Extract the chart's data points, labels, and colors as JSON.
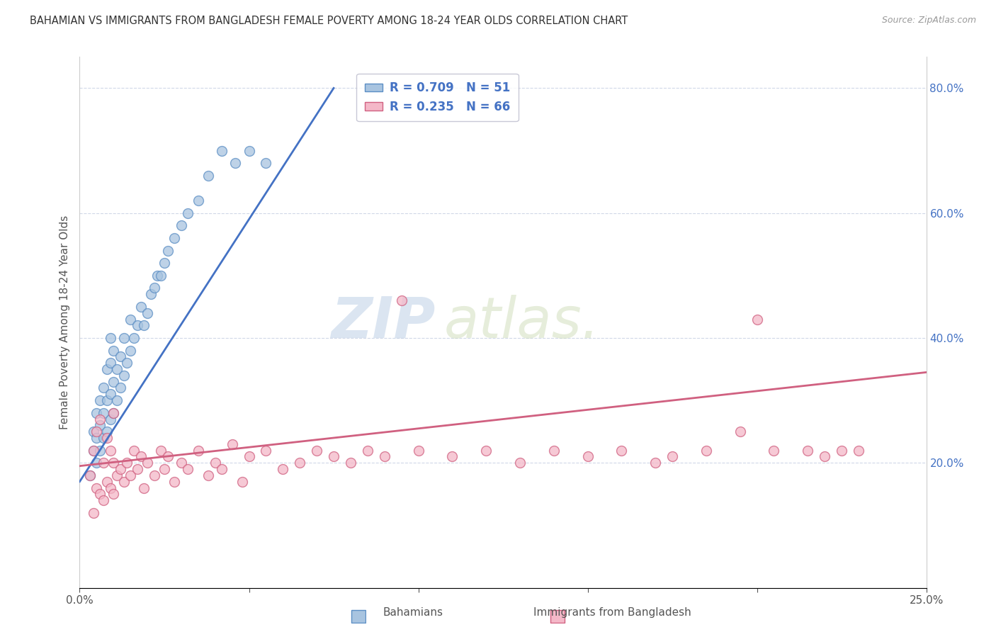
{
  "title": "BAHAMIAN VS IMMIGRANTS FROM BANGLADESH FEMALE POVERTY AMONG 18-24 YEAR OLDS CORRELATION CHART",
  "source": "Source: ZipAtlas.com",
  "ylabel": "Female Poverty Among 18-24 Year Olds",
  "xlim": [
    0.0,
    0.25
  ],
  "ylim": [
    0.0,
    0.85
  ],
  "xticks": [
    0.0,
    0.05,
    0.1,
    0.15,
    0.2,
    0.25
  ],
  "xticklabels": [
    "0.0%",
    "",
    "",
    "",
    "",
    "25.0%"
  ],
  "yticks_right": [
    0.2,
    0.4,
    0.6,
    0.8
  ],
  "yticklabels_right": [
    "20.0%",
    "40.0%",
    "60.0%",
    "80.0%"
  ],
  "series1_label": "Bahamians",
  "series1_R": "0.709",
  "series1_N": "51",
  "series1_color": "#a8c4e0",
  "series1_edge_color": "#5b8ec4",
  "series1_line_color": "#4472c4",
  "series2_label": "Immigrants from Bangladesh",
  "series2_R": "0.235",
  "series2_N": "66",
  "series2_color": "#f4b8c8",
  "series2_edge_color": "#d06080",
  "series2_line_color": "#d06080",
  "legend_text_color": "#4472c4",
  "watermark_zip": "ZIP",
  "watermark_atlas": "atlas.",
  "background_color": "#ffffff",
  "grid_color": "#d0d8e8",
  "series1_x": [
    0.003,
    0.004,
    0.004,
    0.005,
    0.005,
    0.005,
    0.006,
    0.006,
    0.006,
    0.007,
    0.007,
    0.007,
    0.008,
    0.008,
    0.008,
    0.009,
    0.009,
    0.009,
    0.009,
    0.01,
    0.01,
    0.01,
    0.011,
    0.011,
    0.012,
    0.012,
    0.013,
    0.013,
    0.014,
    0.015,
    0.015,
    0.016,
    0.017,
    0.018,
    0.019,
    0.02,
    0.021,
    0.022,
    0.023,
    0.024,
    0.025,
    0.026,
    0.028,
    0.03,
    0.032,
    0.035,
    0.038,
    0.042,
    0.046,
    0.05,
    0.055
  ],
  "series1_y": [
    0.18,
    0.22,
    0.25,
    0.2,
    0.24,
    0.28,
    0.22,
    0.26,
    0.3,
    0.24,
    0.28,
    0.32,
    0.25,
    0.3,
    0.35,
    0.27,
    0.31,
    0.36,
    0.4,
    0.28,
    0.33,
    0.38,
    0.3,
    0.35,
    0.32,
    0.37,
    0.34,
    0.4,
    0.36,
    0.38,
    0.43,
    0.4,
    0.42,
    0.45,
    0.42,
    0.44,
    0.47,
    0.48,
    0.5,
    0.5,
    0.52,
    0.54,
    0.56,
    0.58,
    0.6,
    0.62,
    0.66,
    0.7,
    0.68,
    0.7,
    0.68
  ],
  "series2_x": [
    0.003,
    0.004,
    0.004,
    0.005,
    0.005,
    0.006,
    0.006,
    0.007,
    0.007,
    0.008,
    0.008,
    0.009,
    0.009,
    0.01,
    0.01,
    0.01,
    0.011,
    0.012,
    0.013,
    0.014,
    0.015,
    0.016,
    0.017,
    0.018,
    0.019,
    0.02,
    0.022,
    0.024,
    0.025,
    0.026,
    0.028,
    0.03,
    0.032,
    0.035,
    0.038,
    0.04,
    0.042,
    0.045,
    0.048,
    0.05,
    0.055,
    0.06,
    0.065,
    0.07,
    0.075,
    0.08,
    0.085,
    0.09,
    0.095,
    0.1,
    0.11,
    0.12,
    0.13,
    0.14,
    0.15,
    0.16,
    0.17,
    0.175,
    0.185,
    0.195,
    0.2,
    0.205,
    0.215,
    0.22,
    0.225,
    0.23
  ],
  "series2_y": [
    0.18,
    0.12,
    0.22,
    0.16,
    0.25,
    0.15,
    0.27,
    0.14,
    0.2,
    0.17,
    0.24,
    0.16,
    0.22,
    0.15,
    0.2,
    0.28,
    0.18,
    0.19,
    0.17,
    0.2,
    0.18,
    0.22,
    0.19,
    0.21,
    0.16,
    0.2,
    0.18,
    0.22,
    0.19,
    0.21,
    0.17,
    0.2,
    0.19,
    0.22,
    0.18,
    0.2,
    0.19,
    0.23,
    0.17,
    0.21,
    0.22,
    0.19,
    0.2,
    0.22,
    0.21,
    0.2,
    0.22,
    0.21,
    0.46,
    0.22,
    0.21,
    0.22,
    0.2,
    0.22,
    0.21,
    0.22,
    0.2,
    0.21,
    0.22,
    0.25,
    0.43,
    0.22,
    0.22,
    0.21,
    0.22,
    0.22
  ],
  "line1_x0": 0.0,
  "line1_y0": 0.17,
  "line1_x1": 0.075,
  "line1_y1": 0.8,
  "line2_x0": 0.0,
  "line2_y0": 0.195,
  "line2_x1": 0.25,
  "line2_y1": 0.345
}
